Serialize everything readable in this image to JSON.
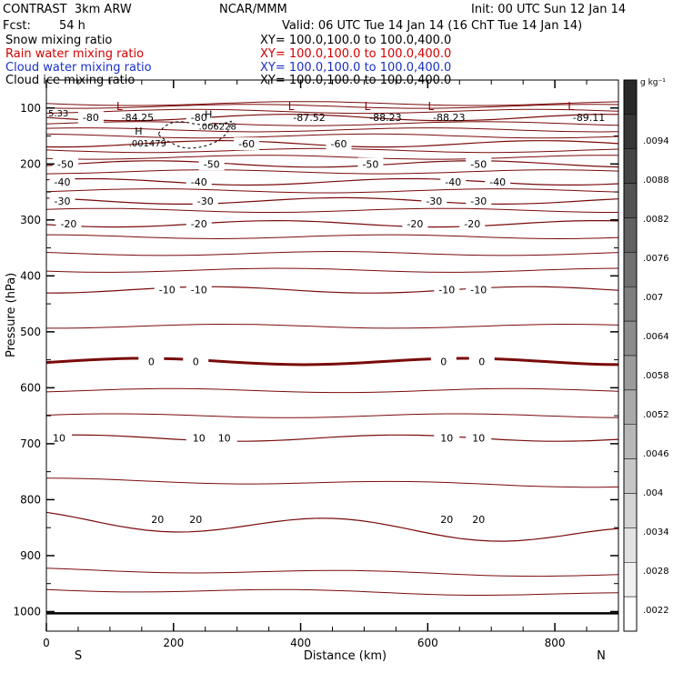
{
  "header": {
    "title": "CONTRAST  3km ARW",
    "center": "NCAR/MMM",
    "init": "Init: 00 UTC Sun 12 Jan 14",
    "fcst_label": "Fcst:",
    "fcst_value": "54 h",
    "valid": "Valid: 06 UTC Tue 14 Jan 14 (16 ChT Tue 14 Jan 14)"
  },
  "fields": [
    {
      "name": "Snow mixing ratio",
      "xy": "XY= 100.0,100.0 to 100.0,400.0",
      "color": "#000000"
    },
    {
      "name": "Rain water mixing ratio",
      "xy": "XY= 100.0,100.0 to 100.0,400.0",
      "color": "#d40000"
    },
    {
      "name": "Cloud water mixing ratio",
      "xy": "XY= 100.0,100.0 to 100.0,400.0",
      "color": "#1a2fc4"
    },
    {
      "name": "Cloud ice mixing ratio",
      "xy": "XY= 100.0,100.0 to 100.0,400.0",
      "color": "#000000"
    }
  ],
  "chart_data": {
    "type": "contour",
    "xlabel": "Distance (km)",
    "ylabel": "Pressure (hPa)",
    "x_ticks": [
      0,
      200,
      400,
      600,
      800
    ],
    "xlim": [
      0,
      900
    ],
    "y_ticks": [
      100,
      200,
      300,
      400,
      500,
      600,
      700,
      800,
      900,
      1000
    ],
    "ylim": [
      1035,
      50
    ],
    "x_end_labels": {
      "left": "S",
      "right": "N"
    },
    "colorbar": {
      "unit": "g kg⁻¹",
      "labels": [
        ".0094",
        ".0088",
        ".0082",
        ".0076",
        ".007",
        ".0064",
        ".0058",
        ".0052",
        ".0046",
        ".004",
        ".0034",
        ".0028",
        ".0022"
      ]
    },
    "isotherm_color": "#7a0a0a",
    "labeled_isotherms": [
      {
        "value": -80,
        "p": 117,
        "labels": [
          {
            "x": 70,
            "text": "-80"
          },
          {
            "x": 240,
            "text": "-80"
          }
        ]
      },
      {
        "value": -60,
        "p": 164,
        "labels": [
          {
            "x": 315,
            "text": "-60"
          },
          {
            "x": 460,
            "text": "-60"
          }
        ]
      },
      {
        "value": -50,
        "p": 200,
        "labels": [
          {
            "x": 30,
            "text": "-50"
          },
          {
            "x": 260,
            "text": "-50"
          },
          {
            "x": 510,
            "text": "-50"
          },
          {
            "x": 680,
            "text": "-50"
          }
        ]
      },
      {
        "value": -40,
        "p": 232,
        "labels": [
          {
            "x": 25,
            "text": "-40"
          },
          {
            "x": 240,
            "text": "-40"
          },
          {
            "x": 640,
            "text": "-40"
          },
          {
            "x": 710,
            "text": "-40"
          }
        ]
      },
      {
        "value": -30,
        "p": 266,
        "labels": [
          {
            "x": 25,
            "text": "-30"
          },
          {
            "x": 250,
            "text": "-30"
          },
          {
            "x": 610,
            "text": "-30"
          },
          {
            "x": 680,
            "text": "-30"
          }
        ]
      },
      {
        "value": -20,
        "p": 307,
        "labels": [
          {
            "x": 35,
            "text": "-20"
          },
          {
            "x": 240,
            "text": "-20"
          },
          {
            "x": 580,
            "text": "-20"
          },
          {
            "x": 670,
            "text": "-20"
          }
        ]
      },
      {
        "value": -10,
        "p": 425,
        "labels": [
          {
            "x": 190,
            "text": "-10"
          },
          {
            "x": 240,
            "text": "-10"
          },
          {
            "x": 630,
            "text": "-10"
          },
          {
            "x": 680,
            "text": "-10"
          }
        ]
      },
      {
        "value": 0,
        "p": 553,
        "labels": [
          {
            "x": 165,
            "text": "0"
          },
          {
            "x": 235,
            "text": "0"
          },
          {
            "x": 625,
            "text": "0"
          },
          {
            "x": 685,
            "text": "0"
          }
        ]
      },
      {
        "value": 10,
        "p": 690,
        "labels": [
          {
            "x": 20,
            "text": "10"
          },
          {
            "x": 240,
            "text": "10"
          },
          {
            "x": 280,
            "text": "10"
          },
          {
            "x": 630,
            "text": "10"
          },
          {
            "x": 680,
            "text": "10"
          }
        ]
      },
      {
        "value": 20,
        "p": 835,
        "labels": [
          {
            "x": 175,
            "text": "20"
          },
          {
            "x": 235,
            "text": "20"
          },
          {
            "x": 630,
            "text": "20"
          },
          {
            "x": 680,
            "text": "20"
          }
        ]
      }
    ],
    "minima": [
      {
        "x": 115,
        "p": 100,
        "value": "-84.25"
      },
      {
        "x": 385,
        "p": 100,
        "value": "-87.52"
      },
      {
        "x": 505,
        "p": 100,
        "value": "-88.23"
      },
      {
        "x": 605,
        "p": 100,
        "value": "-88.23"
      },
      {
        "x": 825,
        "p": 100,
        "value": "-89.11"
      }
    ],
    "maxima": [
      {
        "x": 145,
        "p": 157,
        "value": ".001479"
      },
      {
        "x": 255,
        "p": 127,
        "value": ".006228"
      }
    ],
    "edge_value": "5.33"
  }
}
